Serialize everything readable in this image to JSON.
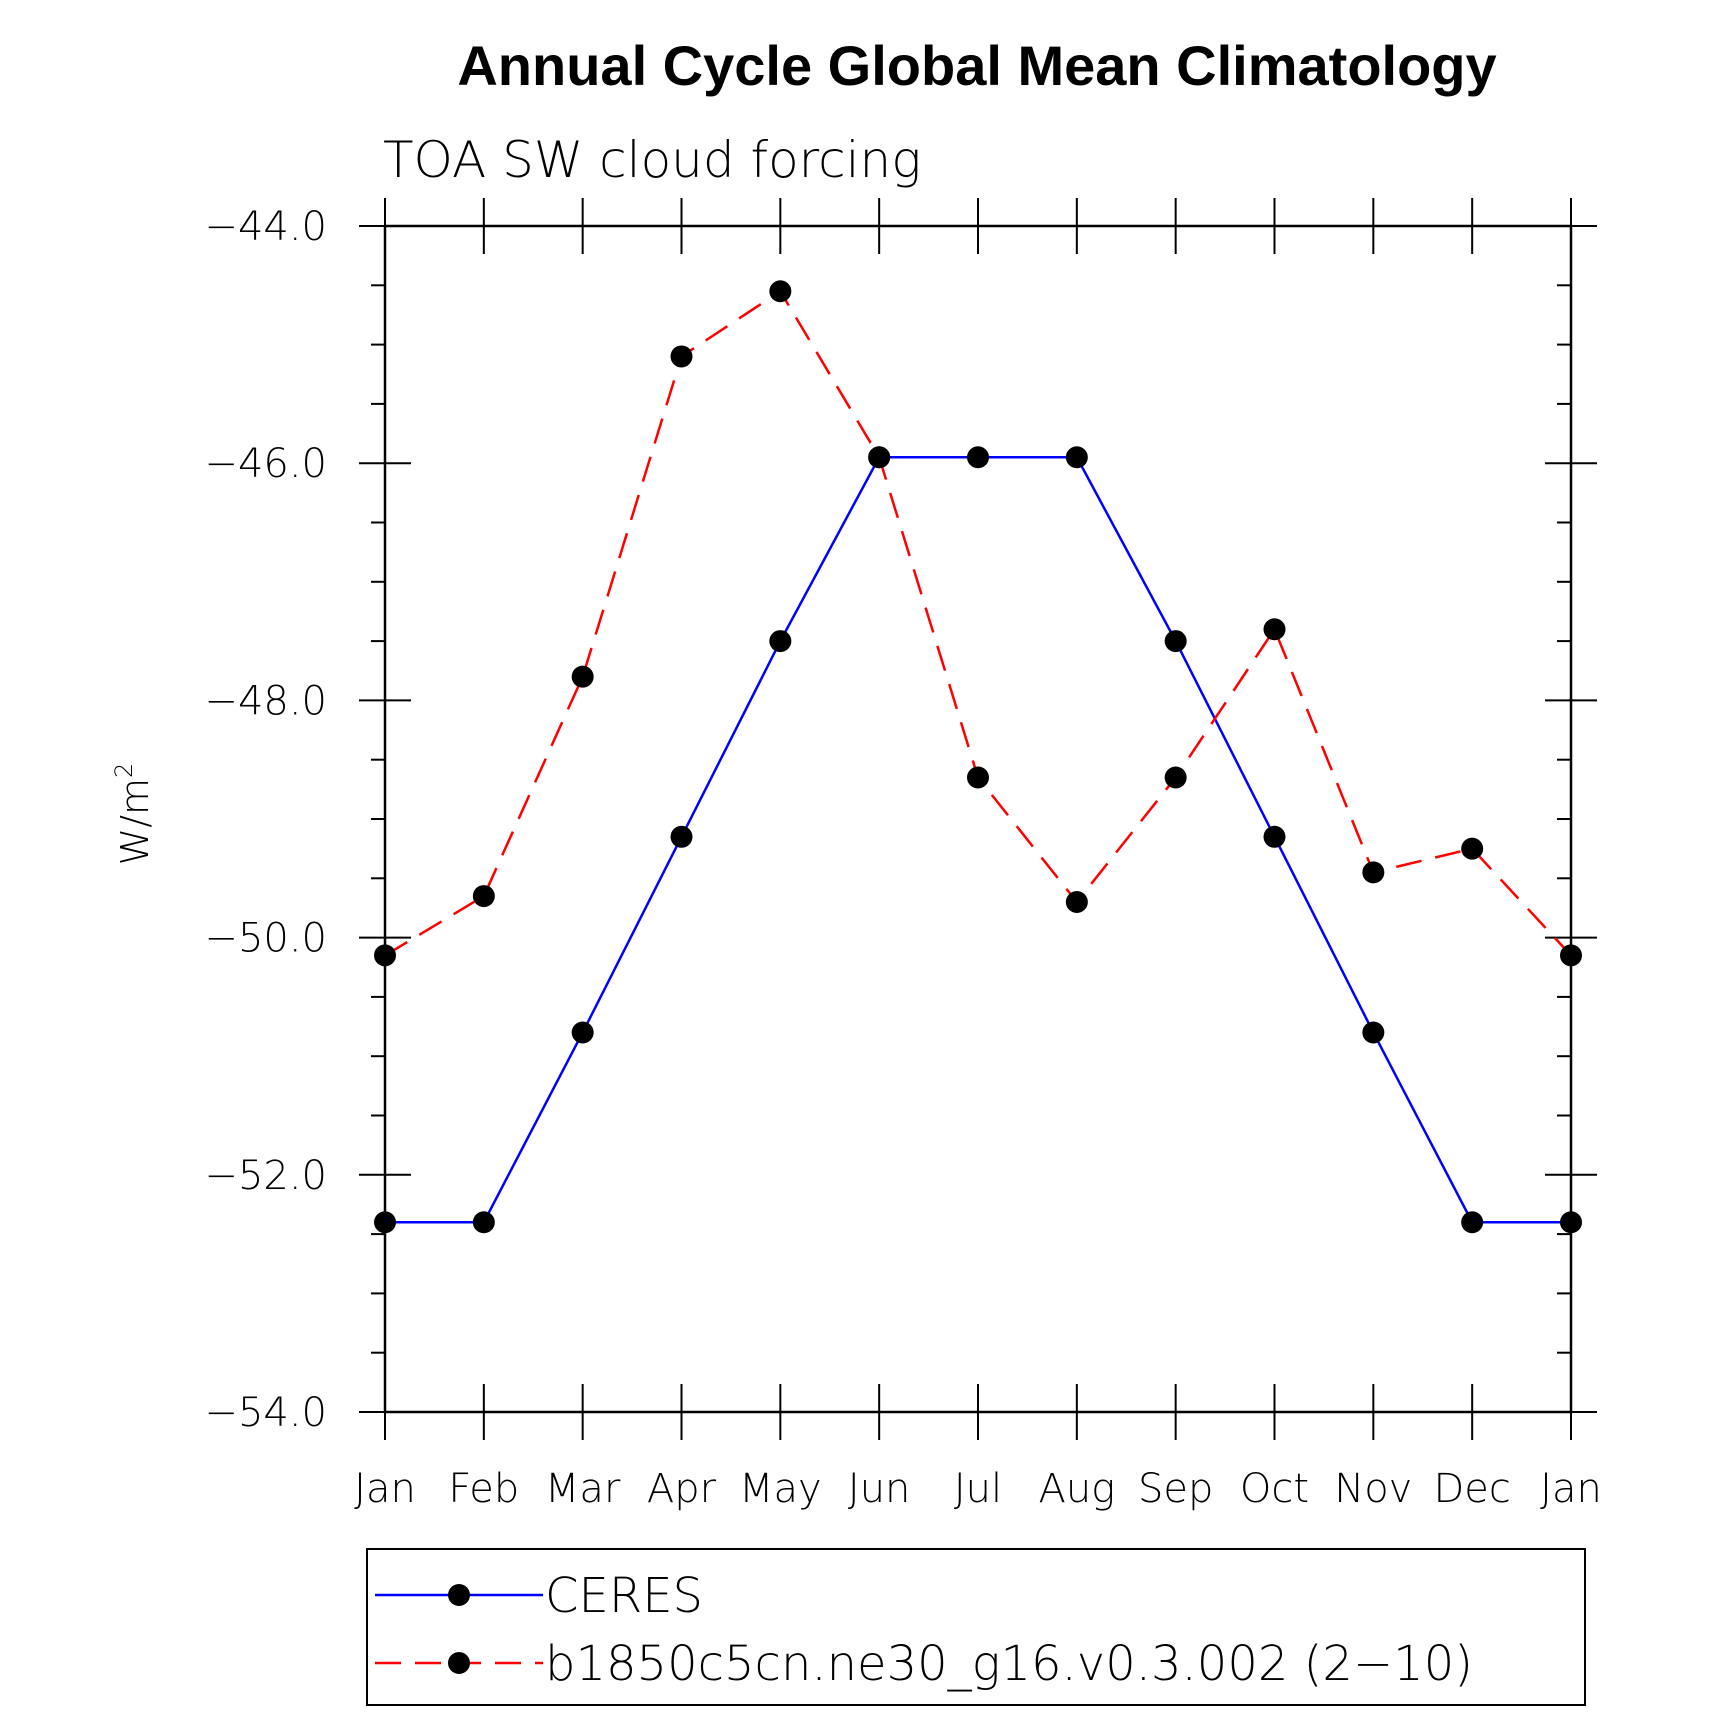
{
  "chart_data": {
    "type": "line",
    "title": "Annual Cycle Global Mean Climatology",
    "subtitle": "TOA SW cloud forcing",
    "xlabel": "",
    "ylabel_main": "W/m",
    "ylabel_sup": "2",
    "categories": [
      "Jan",
      "Feb",
      "Mar",
      "Apr",
      "May",
      "Jun",
      "Jul",
      "Aug",
      "Sep",
      "Oct",
      "Nov",
      "Dec",
      "Jan"
    ],
    "ylim": [
      -54.0,
      -44.0
    ],
    "yticks_major": [
      "-44.0",
      "-46.0",
      "-48.0",
      "-50.0",
      "-52.0",
      "-54.0"
    ],
    "ytick_step_minor": 0.5,
    "grid": false,
    "legend_position": "bottom",
    "series": [
      {
        "name": "CERES",
        "color": "#0000ff",
        "dash": "solid",
        "marker": "filled-circle",
        "values": [
          -52.4,
          -52.4,
          -50.8,
          -49.15,
          -47.5,
          -45.95,
          -45.95,
          -45.95,
          -47.5,
          -49.15,
          -50.8,
          -52.4,
          -52.4
        ]
      },
      {
        "name": "b1850c5cn.ne30_g16.v0.3.002 (2−10)",
        "color": "#ff0000",
        "dash": "dashed",
        "marker": "filled-circle",
        "values": [
          -50.15,
          -49.65,
          -47.8,
          -45.1,
          -44.55,
          -45.95,
          -48.65,
          -49.7,
          -48.65,
          -47.4,
          -49.45,
          -49.25,
          -50.15
        ]
      }
    ]
  }
}
